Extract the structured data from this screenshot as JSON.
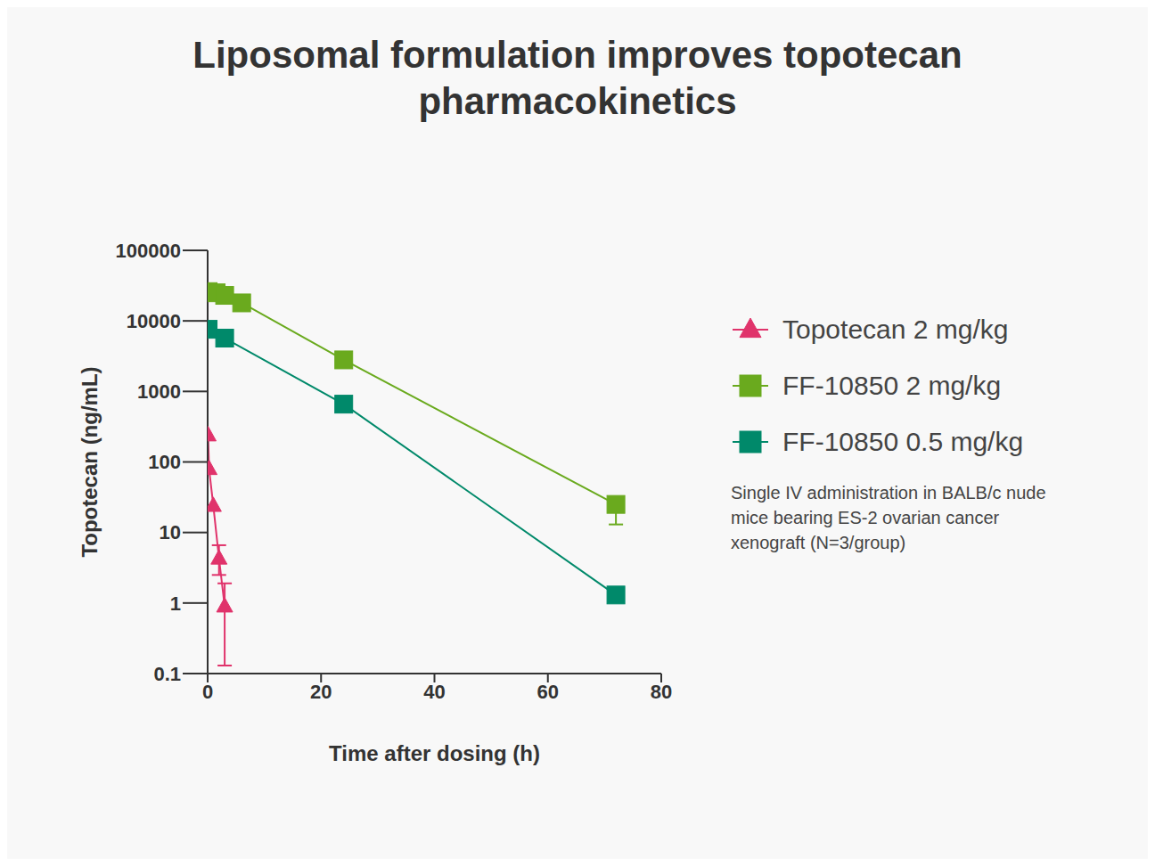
{
  "chart_data": {
    "type": "line",
    "title": "Liposomal formulation improves topotecan pharmacokinetics",
    "x_label": "Time after dosing (h)",
    "y_label": "Topotecan (ng/mL)",
    "log": "y",
    "xlim": [
      0,
      80
    ],
    "xticks": [
      0,
      20,
      40,
      60,
      80
    ],
    "ylim": [
      0.1,
      100000
    ],
    "yticks": [
      0.1,
      1,
      10,
      100,
      1000,
      10000,
      100000
    ],
    "legend": "right",
    "note": "Single IV administration in BALB/c nude mice bearing ES-2 ovarian cancer xenograft (N=3/group)",
    "series": [
      {
        "name": "Topotecan 2 mg/kg",
        "color": "#e0336b",
        "marker": "triangle",
        "x": [
          0.083,
          0.25,
          1,
          2,
          3
        ],
        "values": [
          240,
          80,
          24,
          4.3,
          0.9
        ],
        "errors": [
          null,
          null,
          null,
          [
            2.5,
            6.6
          ],
          [
            0.13,
            1.9
          ]
        ]
      },
      {
        "name": "FF-10850 2 mg/kg",
        "color": "#6aaa1e",
        "marker": "square",
        "x": [
          0.083,
          1.5,
          3,
          6,
          24,
          72
        ],
        "values": [
          26000,
          25000,
          23000,
          18000,
          2800,
          25
        ],
        "errors": [
          null,
          null,
          null,
          null,
          null,
          [
            13,
            30
          ]
        ]
      },
      {
        "name": "FF-10850 0.5 mg/kg",
        "color": "#00896a",
        "marker": "square",
        "x": [
          0.083,
          3,
          24,
          72
        ],
        "values": [
          7600,
          5700,
          660,
          1.3
        ],
        "errors": [
          null,
          null,
          null,
          null
        ]
      }
    ]
  }
}
